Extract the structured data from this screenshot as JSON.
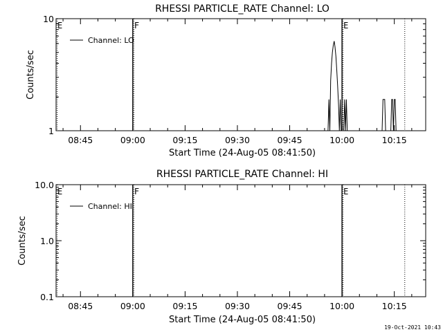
{
  "chart_data": [
    {
      "type": "line",
      "title": "RHESSI PARTICLE_RATE Channel: LO",
      "xlabel": "Start Time (24-Aug-05 08:41:50)",
      "ylabel": "Counts/sec",
      "y_scale": "log",
      "ylim": [
        1,
        10
      ],
      "y_ticks": [
        1,
        10
      ],
      "y_tick_labels": [
        "1",
        "10"
      ],
      "xlim": [
        "08:38",
        "10:24"
      ],
      "x_ticks": [
        "08:45",
        "09:00",
        "09:15",
        "09:30",
        "09:45",
        "10:00",
        "10:15"
      ],
      "legend": "top-left",
      "series": [
        {
          "name": "Channel: LO",
          "x": [
            "09:56:00",
            "09:56:15",
            "09:56:30",
            "09:56:45",
            "09:57:00",
            "09:57:15",
            "09:57:30",
            "09:57:45",
            "09:58:00",
            "09:58:15",
            "09:58:30",
            "09:58:45",
            "09:59:00",
            "09:59:15",
            "09:59:30",
            "09:59:45",
            "10:00:00",
            "10:00:30",
            "10:00:45",
            "10:01:00",
            "10:01:15",
            "10:01:30",
            "10:11:30",
            "10:11:45",
            "10:12:00",
            "10:12:15",
            "10:12:30",
            "10:14:00",
            "10:14:15",
            "10:14:30",
            "10:14:45",
            "10:15:00",
            "10:15:15",
            "10:15:30"
          ],
          "y": [
            1,
            1.9,
            1,
            2.8,
            4.0,
            5.0,
            5.8,
            6.3,
            5.6,
            4.6,
            3.5,
            2.5,
            1.7,
            1,
            1.9,
            1,
            1,
            1,
            1.9,
            1,
            1.9,
            1,
            1,
            1.9,
            1.9,
            1.9,
            1,
            1,
            1.9,
            1.9,
            1,
            1.9,
            1.9,
            1
          ]
        }
      ],
      "markers": [
        {
          "label": "E",
          "time": "08:38"
        },
        {
          "label": "F",
          "time": "09:00"
        },
        {
          "label": "E",
          "time": "10:00"
        },
        {
          "label": "",
          "time": "10:18"
        }
      ]
    },
    {
      "type": "line",
      "title": "RHESSI PARTICLE_RATE Channel: HI",
      "xlabel": "Start Time (24-Aug-05 08:41:50)",
      "ylabel": "Counts/sec",
      "y_scale": "log",
      "ylim": [
        0.1,
        10
      ],
      "y_ticks": [
        0.1,
        1,
        10
      ],
      "y_tick_labels": [
        "0.1",
        "1.0",
        "10.0"
      ],
      "xlim": [
        "08:38",
        "10:24"
      ],
      "x_ticks": [
        "08:45",
        "09:00",
        "09:15",
        "09:30",
        "09:45",
        "10:00",
        "10:15"
      ],
      "legend": "top-left",
      "series": [
        {
          "name": "Channel: HI",
          "x": [],
          "y": []
        }
      ],
      "markers": [
        {
          "label": "E",
          "time": "08:38"
        },
        {
          "label": "F",
          "time": "09:00"
        },
        {
          "label": "E",
          "time": "10:00"
        },
        {
          "label": "",
          "time": "10:18"
        }
      ]
    }
  ],
  "footer": {
    "timestamp": "19-Oct-2021 10:43"
  }
}
